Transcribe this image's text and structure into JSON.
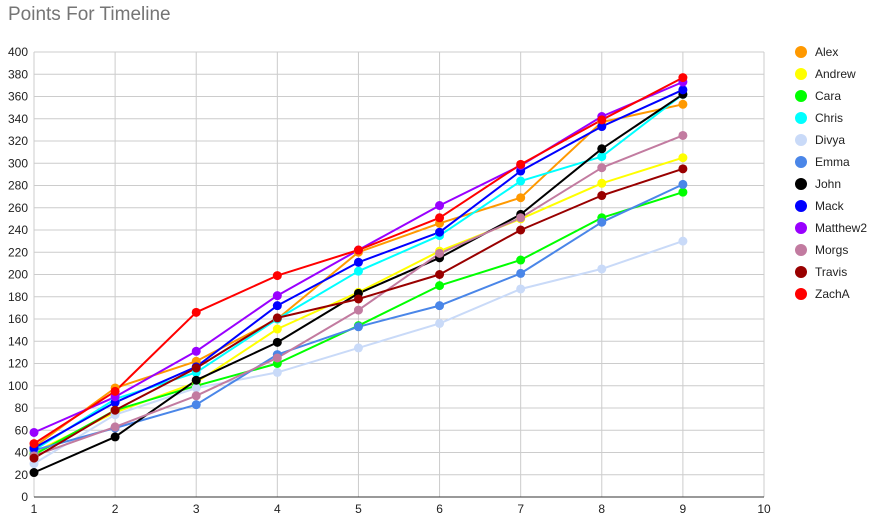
{
  "chart_data": {
    "type": "line",
    "title": "Points For Timeline",
    "xlabel": "",
    "ylabel": "",
    "x": [
      1,
      2,
      3,
      4,
      5,
      6,
      7,
      8,
      9
    ],
    "xlim": [
      1,
      10
    ],
    "ylim": [
      0,
      400
    ],
    "x_ticks": [
      1,
      2,
      3,
      4,
      5,
      6,
      7,
      8,
      9,
      10
    ],
    "y_ticks": [
      0,
      20,
      40,
      60,
      80,
      100,
      120,
      140,
      160,
      180,
      200,
      220,
      240,
      260,
      280,
      300,
      320,
      340,
      360,
      380,
      400
    ],
    "grid": true,
    "legend_position": "right",
    "series": [
      {
        "name": "Alex",
        "color": "#ff9900",
        "values": [
          45,
          98,
          122,
          160,
          220,
          246,
          269,
          337,
          353
        ]
      },
      {
        "name": "Andrew",
        "color": "#ffff00",
        "values": [
          40,
          76,
          103,
          151,
          184,
          221,
          250,
          282,
          305
        ]
      },
      {
        "name": "Cara",
        "color": "#00ff00",
        "values": [
          38,
          78,
          100,
          120,
          154,
          190,
          213,
          251,
          274
        ]
      },
      {
        "name": "Chris",
        "color": "#00ffff",
        "values": [
          42,
          88,
          112,
          160,
          203,
          235,
          284,
          306,
          362
        ]
      },
      {
        "name": "Divya",
        "color": "#c9daf8",
        "values": [
          30,
          74,
          98,
          112,
          134,
          156,
          187,
          205,
          230
        ]
      },
      {
        "name": "Emma",
        "color": "#4a86e8",
        "values": [
          42,
          62,
          83,
          128,
          153,
          172,
          201,
          247,
          281
        ]
      },
      {
        "name": "John",
        "color": "#000000",
        "values": [
          22,
          54,
          105,
          139,
          183,
          215,
          254,
          313,
          362
        ]
      },
      {
        "name": "Mack",
        "color": "#0000ff",
        "values": [
          44,
          85,
          117,
          172,
          211,
          238,
          293,
          333,
          366
        ]
      },
      {
        "name": "Matthew2",
        "color": "#9900ff",
        "values": [
          58,
          90,
          131,
          181,
          222,
          262,
          298,
          342,
          373
        ]
      },
      {
        "name": "Morgs",
        "color": "#c27ba0",
        "values": [
          37,
          63,
          91,
          125,
          168,
          219,
          251,
          296,
          325
        ]
      },
      {
        "name": "Travis",
        "color": "#990000",
        "values": [
          35,
          78,
          116,
          161,
          178,
          200,
          240,
          271,
          295
        ]
      },
      {
        "name": "ZachA",
        "color": "#ff0000",
        "values": [
          48,
          95,
          166,
          199,
          222,
          251,
          299,
          339,
          377
        ]
      }
    ]
  }
}
